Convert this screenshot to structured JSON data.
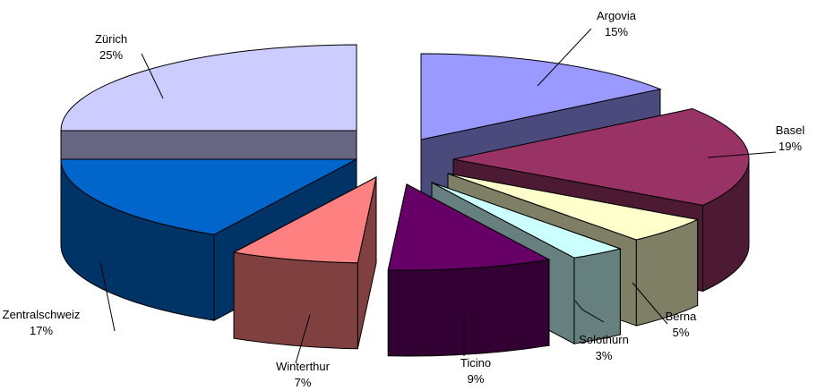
{
  "chart_data": {
    "type": "pie",
    "style": "3d-exploded",
    "title": "",
    "unit": "%",
    "slices": [
      {
        "label": "Argovia",
        "value": 15,
        "value_label": "15%",
        "color": "#9999ff",
        "side": "#4a4a7c"
      },
      {
        "label": "Basel",
        "value": 19,
        "value_label": "19%",
        "color": "#993366",
        "side": "#4d1a33"
      },
      {
        "label": "Berna",
        "value": 5,
        "value_label": "5%",
        "color": "#ffffcc",
        "side": "#7f7f66"
      },
      {
        "label": "Solothurn",
        "value": 3,
        "value_label": "3%",
        "color": "#ccffff",
        "side": "#667f7f"
      },
      {
        "label": "Ticino",
        "value": 9,
        "value_label": "9%",
        "color": "#660066",
        "side": "#330033"
      },
      {
        "label": "Winterthur",
        "value": 7,
        "value_label": "7%",
        "color": "#ff8080",
        "side": "#804040"
      },
      {
        "label": "Zentralschweiz",
        "value": 17,
        "value_label": "17%",
        "color": "#0066cc",
        "side": "#003366"
      },
      {
        "label": "Zürich",
        "value": 25,
        "value_label": "25%",
        "color": "#ccccff",
        "side": "#666680"
      }
    ]
  }
}
